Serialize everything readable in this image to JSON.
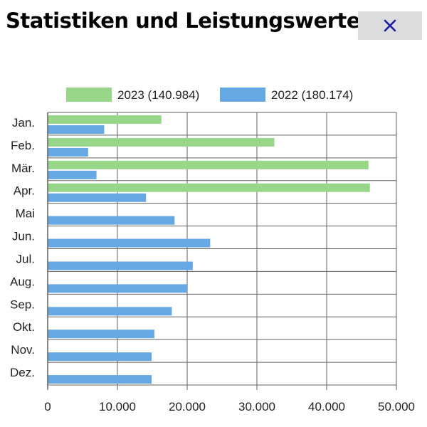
{
  "header": {
    "title": "Statistiken und Leistungswerte",
    "close_icon": "close-icon"
  },
  "colors": {
    "series_2023": "#98d68a",
    "series_2022": "#65a8e4",
    "close_icon": "#1a1aa6",
    "grid": "#606060"
  },
  "chart_data": {
    "type": "bar",
    "orientation": "horizontal",
    "title": "",
    "xlabel": "",
    "ylabel": "",
    "categories": [
      "Jan.",
      "Feb.",
      "Mär.",
      "Apr.",
      "Mai",
      "Jun.",
      "Jul.",
      "Aug.",
      "Sep.",
      "Okt.",
      "Nov.",
      "Dez."
    ],
    "series": [
      {
        "name": "2023 (140.984)",
        "color": "#98d68a",
        "values": [
          16300,
          32500,
          46000,
          46200,
          null,
          null,
          null,
          null,
          null,
          null,
          null,
          null
        ]
      },
      {
        "name": "2022 (180.174)",
        "color": "#65a8e4",
        "values": [
          8100,
          5800,
          7000,
          14100,
          18200,
          23300,
          20800,
          20000,
          17800,
          15300,
          14900,
          14900
        ]
      }
    ],
    "xlim": [
      0,
      50000
    ],
    "xticks": [
      0,
      10000,
      20000,
      30000,
      40000,
      50000
    ],
    "xtick_labels": [
      "0",
      "10.000",
      "20.000",
      "30.000",
      "40.000",
      "50.000"
    ],
    "grid": true,
    "legend_position": "top"
  }
}
